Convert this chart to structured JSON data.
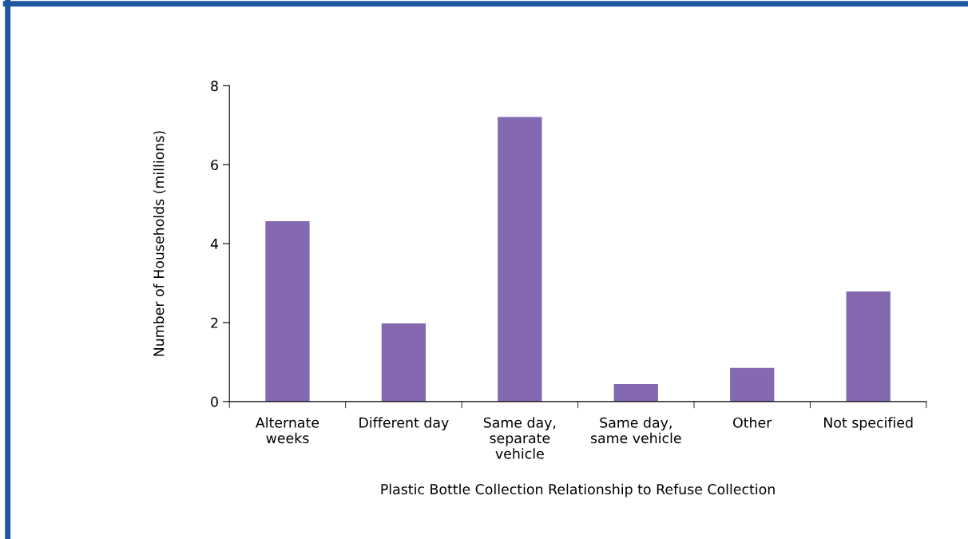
{
  "chart_data": {
    "type": "bar",
    "xlabel": "Plastic Bottle Collection Relationship to Refuse Collection",
    "ylabel": "Number of Households (millions)",
    "categories": [
      "Alternate\nweeks",
      "Different day",
      "Same day,\nseparate\nvehicle",
      "Same day,\nsame vehicle",
      "Other",
      "Not specified"
    ],
    "values": [
      4.57,
      1.98,
      7.21,
      0.44,
      0.85,
      2.79
    ],
    "color": "#8468b0",
    "ylim": [
      0,
      8
    ],
    "yticks": [
      0,
      2,
      4,
      6,
      8
    ],
    "grid": false,
    "legend": false
  }
}
